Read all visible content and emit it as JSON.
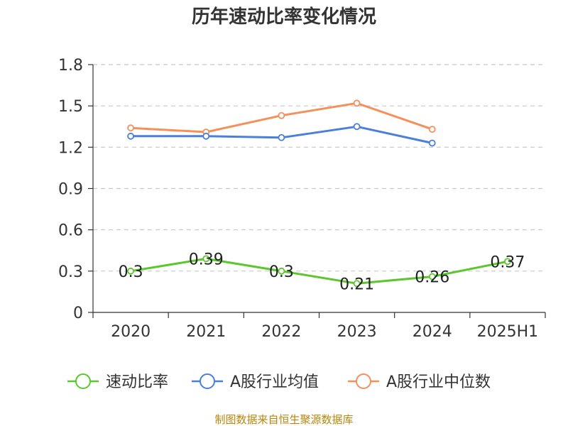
{
  "chart_data": {
    "type": "line",
    "title": "历年速动比率变化情况",
    "xlabel": "",
    "ylabel": "",
    "categories": [
      "2020",
      "2021",
      "2022",
      "2023",
      "2024",
      "2025H1"
    ],
    "ylim": [
      0,
      1.8
    ],
    "yticks": [
      "0",
      "0.3",
      "0.6",
      "0.9",
      "1.2",
      "1.5",
      "1.8"
    ],
    "grid": true,
    "legend_position": "bottom",
    "series": [
      {
        "name": "速动比率",
        "color": "#5cc72c",
        "values": [
          0.3,
          0.39,
          0.3,
          0.21,
          0.26,
          0.37
        ],
        "labels": [
          "0.3",
          "0.39",
          "0.3",
          "0.21",
          "0.26",
          "0.37"
        ]
      },
      {
        "name": "A股行业均值",
        "color": "#4a7fdc",
        "values": [
          1.28,
          1.28,
          1.27,
          1.35,
          1.23,
          null
        ]
      },
      {
        "name": "A股行业中位数",
        "color": "#f5905a",
        "values": [
          1.34,
          1.31,
          1.43,
          1.52,
          1.33,
          null
        ]
      }
    ]
  },
  "source": "制图数据来自恒生聚源数据库"
}
